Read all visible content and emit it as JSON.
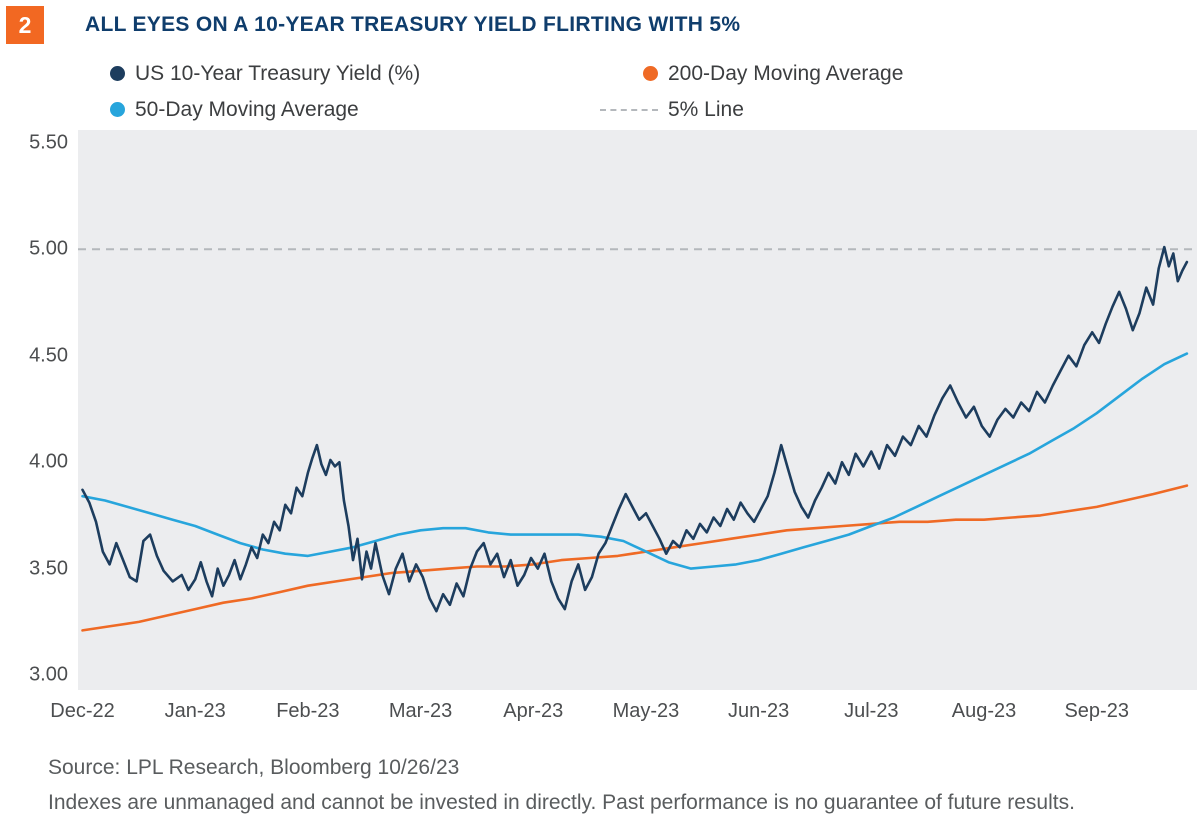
{
  "badge": {
    "number": "2"
  },
  "title": "ALL EYES ON A 10-YEAR TREASURY YIELD FLIRTING WITH 5%",
  "legend": [
    {
      "id": "us-10-year-treasury-yield",
      "label": "US 10-Year Treasury Yield (%)",
      "color": "#1d3d5e",
      "type": "dot"
    },
    {
      "id": "200-day-moving-average",
      "label": "200-Day Moving Average",
      "color": "#ef6a25",
      "type": "dot"
    },
    {
      "id": "50-day-moving-average",
      "label": "50-Day Moving Average",
      "color": "#27a5dc",
      "type": "dot"
    },
    {
      "id": "5-percent-line",
      "label": "5% Line",
      "color": "#b4b8bc",
      "type": "dash"
    }
  ],
  "footer": {
    "source": "Source: LPL Research, Bloomberg 10/26/23",
    "disclaimer": "Indexes are unmanaged and cannot be invested in directly. Past performance is no guarantee of future results."
  },
  "chart_data": {
    "type": "line",
    "title": "ALL EYES ON A 10-YEAR TREASURY YIELD FLIRTING WITH 5%",
    "xlabel": "",
    "ylabel": "",
    "x_unit": "months (0 = Dec-22 tick, data extends to 10/26/23)",
    "grid": false,
    "legend_position": "top",
    "xlim": [
      -0.04,
      9.89
    ],
    "ylim": [
      2.93,
      5.56
    ],
    "y_ticks": [
      {
        "value": 5.5,
        "label": "5.50"
      },
      {
        "value": 5.0,
        "label": "5.00"
      },
      {
        "value": 4.5,
        "label": "4.50"
      },
      {
        "value": 4.0,
        "label": "4.00"
      },
      {
        "value": 3.5,
        "label": "3.50"
      },
      {
        "value": 3.0,
        "label": "3.00"
      }
    ],
    "x_ticks": [
      {
        "value": 0,
        "label": "Dec-22"
      },
      {
        "value": 1,
        "label": "Jan-23"
      },
      {
        "value": 2,
        "label": "Feb-23"
      },
      {
        "value": 3,
        "label": "Mar-23"
      },
      {
        "value": 4,
        "label": "Apr-23"
      },
      {
        "value": 5,
        "label": "May-23"
      },
      {
        "value": 6,
        "label": "Jun-23"
      },
      {
        "value": 7,
        "label": "Jul-23"
      },
      {
        "value": 8,
        "label": "Aug-23"
      },
      {
        "value": 9,
        "label": "Sep-23"
      }
    ],
    "reference_line": {
      "label": "5% Line",
      "value": 5.0,
      "style": "dashed",
      "color": "#b4b8bc"
    },
    "series": [
      {
        "name": "200-Day Moving Average",
        "data_name": "line-200-day-moving-average",
        "color": "#ef6a25",
        "width": 2.6,
        "points": [
          [
            0,
            3.21
          ],
          [
            0.25,
            3.23
          ],
          [
            0.5,
            3.25
          ],
          [
            0.75,
            3.28
          ],
          [
            1,
            3.31
          ],
          [
            1.25,
            3.34
          ],
          [
            1.5,
            3.36
          ],
          [
            1.75,
            3.39
          ],
          [
            2,
            3.42
          ],
          [
            2.25,
            3.44
          ],
          [
            2.5,
            3.46
          ],
          [
            2.75,
            3.48
          ],
          [
            3,
            3.49
          ],
          [
            3.25,
            3.5
          ],
          [
            3.5,
            3.51
          ],
          [
            3.75,
            3.51
          ],
          [
            4,
            3.52
          ],
          [
            4.25,
            3.54
          ],
          [
            4.5,
            3.55
          ],
          [
            4.75,
            3.56
          ],
          [
            5,
            3.58
          ],
          [
            5.25,
            3.6
          ],
          [
            5.5,
            3.62
          ],
          [
            5.75,
            3.64
          ],
          [
            6,
            3.66
          ],
          [
            6.25,
            3.68
          ],
          [
            6.5,
            3.69
          ],
          [
            6.75,
            3.7
          ],
          [
            7,
            3.71
          ],
          [
            7.25,
            3.72
          ],
          [
            7.5,
            3.72
          ],
          [
            7.75,
            3.73
          ],
          [
            8,
            3.73
          ],
          [
            8.25,
            3.74
          ],
          [
            8.5,
            3.75
          ],
          [
            8.75,
            3.77
          ],
          [
            9,
            3.79
          ],
          [
            9.25,
            3.82
          ],
          [
            9.5,
            3.85
          ],
          [
            9.8,
            3.89
          ]
        ]
      },
      {
        "name": "50-Day Moving Average",
        "data_name": "line-50-day-moving-average",
        "color": "#27a5dc",
        "width": 2.6,
        "points": [
          [
            0,
            3.84
          ],
          [
            0.2,
            3.82
          ],
          [
            0.4,
            3.79
          ],
          [
            0.6,
            3.76
          ],
          [
            0.8,
            3.73
          ],
          [
            1,
            3.7
          ],
          [
            1.2,
            3.66
          ],
          [
            1.4,
            3.62
          ],
          [
            1.6,
            3.59
          ],
          [
            1.8,
            3.57
          ],
          [
            2,
            3.56
          ],
          [
            2.2,
            3.58
          ],
          [
            2.4,
            3.6
          ],
          [
            2.6,
            3.63
          ],
          [
            2.8,
            3.66
          ],
          [
            3,
            3.68
          ],
          [
            3.2,
            3.69
          ],
          [
            3.4,
            3.69
          ],
          [
            3.6,
            3.67
          ],
          [
            3.8,
            3.66
          ],
          [
            4,
            3.66
          ],
          [
            4.2,
            3.66
          ],
          [
            4.4,
            3.66
          ],
          [
            4.6,
            3.65
          ],
          [
            4.8,
            3.63
          ],
          [
            5,
            3.58
          ],
          [
            5.2,
            3.53
          ],
          [
            5.4,
            3.5
          ],
          [
            5.6,
            3.51
          ],
          [
            5.8,
            3.52
          ],
          [
            6,
            3.54
          ],
          [
            6.2,
            3.57
          ],
          [
            6.4,
            3.6
          ],
          [
            6.6,
            3.63
          ],
          [
            6.8,
            3.66
          ],
          [
            7,
            3.7
          ],
          [
            7.2,
            3.74
          ],
          [
            7.4,
            3.79
          ],
          [
            7.6,
            3.84
          ],
          [
            7.8,
            3.89
          ],
          [
            8,
            3.94
          ],
          [
            8.2,
            3.99
          ],
          [
            8.4,
            4.04
          ],
          [
            8.6,
            4.1
          ],
          [
            8.8,
            4.16
          ],
          [
            9,
            4.23
          ],
          [
            9.2,
            4.31
          ],
          [
            9.4,
            4.39
          ],
          [
            9.6,
            4.46
          ],
          [
            9.8,
            4.51
          ]
        ]
      },
      {
        "name": "US 10-Year Treasury Yield (%)",
        "data_name": "line-us-10-year-treasury-yield",
        "color": "#1d3d5e",
        "width": 2.6,
        "points": [
          [
            0,
            3.87
          ],
          [
            0.06,
            3.81
          ],
          [
            0.12,
            3.72
          ],
          [
            0.18,
            3.58
          ],
          [
            0.24,
            3.52
          ],
          [
            0.3,
            3.62
          ],
          [
            0.36,
            3.54
          ],
          [
            0.42,
            3.46
          ],
          [
            0.48,
            3.44
          ],
          [
            0.54,
            3.63
          ],
          [
            0.6,
            3.66
          ],
          [
            0.66,
            3.56
          ],
          [
            0.72,
            3.49
          ],
          [
            0.8,
            3.44
          ],
          [
            0.88,
            3.47
          ],
          [
            0.94,
            3.4
          ],
          [
            1,
            3.45
          ],
          [
            1.05,
            3.53
          ],
          [
            1.1,
            3.44
          ],
          [
            1.15,
            3.37
          ],
          [
            1.2,
            3.5
          ],
          [
            1.25,
            3.42
          ],
          [
            1.3,
            3.47
          ],
          [
            1.35,
            3.54
          ],
          [
            1.4,
            3.45
          ],
          [
            1.45,
            3.52
          ],
          [
            1.5,
            3.6
          ],
          [
            1.55,
            3.55
          ],
          [
            1.6,
            3.66
          ],
          [
            1.65,
            3.62
          ],
          [
            1.7,
            3.72
          ],
          [
            1.75,
            3.68
          ],
          [
            1.8,
            3.8
          ],
          [
            1.85,
            3.76
          ],
          [
            1.9,
            3.88
          ],
          [
            1.95,
            3.84
          ],
          [
            2,
            3.95
          ],
          [
            2.04,
            4.02
          ],
          [
            2.08,
            4.08
          ],
          [
            2.12,
            3.99
          ],
          [
            2.16,
            3.94
          ],
          [
            2.2,
            4.01
          ],
          [
            2.24,
            3.98
          ],
          [
            2.28,
            4
          ],
          [
            2.32,
            3.82
          ],
          [
            2.36,
            3.7
          ],
          [
            2.4,
            3.54
          ],
          [
            2.44,
            3.64
          ],
          [
            2.48,
            3.45
          ],
          [
            2.52,
            3.58
          ],
          [
            2.56,
            3.5
          ],
          [
            2.6,
            3.62
          ],
          [
            2.66,
            3.47
          ],
          [
            2.72,
            3.38
          ],
          [
            2.78,
            3.5
          ],
          [
            2.84,
            3.57
          ],
          [
            2.9,
            3.44
          ],
          [
            2.96,
            3.52
          ],
          [
            3.02,
            3.46
          ],
          [
            3.08,
            3.36
          ],
          [
            3.14,
            3.3
          ],
          [
            3.2,
            3.38
          ],
          [
            3.26,
            3.33
          ],
          [
            3.32,
            3.43
          ],
          [
            3.38,
            3.37
          ],
          [
            3.44,
            3.5
          ],
          [
            3.5,
            3.58
          ],
          [
            3.56,
            3.62
          ],
          [
            3.62,
            3.52
          ],
          [
            3.68,
            3.57
          ],
          [
            3.74,
            3.46
          ],
          [
            3.8,
            3.54
          ],
          [
            3.86,
            3.42
          ],
          [
            3.92,
            3.47
          ],
          [
            3.98,
            3.55
          ],
          [
            4.04,
            3.5
          ],
          [
            4.1,
            3.57
          ],
          [
            4.16,
            3.44
          ],
          [
            4.22,
            3.36
          ],
          [
            4.28,
            3.31
          ],
          [
            4.34,
            3.44
          ],
          [
            4.4,
            3.52
          ],
          [
            4.46,
            3.4
          ],
          [
            4.52,
            3.46
          ],
          [
            4.58,
            3.57
          ],
          [
            4.64,
            3.62
          ],
          [
            4.7,
            3.7
          ],
          [
            4.76,
            3.78
          ],
          [
            4.82,
            3.85
          ],
          [
            4.88,
            3.79
          ],
          [
            4.94,
            3.73
          ],
          [
            5,
            3.76
          ],
          [
            5.06,
            3.7
          ],
          [
            5.12,
            3.64
          ],
          [
            5.18,
            3.57
          ],
          [
            5.24,
            3.63
          ],
          [
            5.3,
            3.6
          ],
          [
            5.36,
            3.68
          ],
          [
            5.42,
            3.64
          ],
          [
            5.48,
            3.71
          ],
          [
            5.54,
            3.67
          ],
          [
            5.6,
            3.74
          ],
          [
            5.66,
            3.7
          ],
          [
            5.72,
            3.78
          ],
          [
            5.78,
            3.73
          ],
          [
            5.84,
            3.81
          ],
          [
            5.9,
            3.76
          ],
          [
            5.96,
            3.72
          ],
          [
            6.02,
            3.78
          ],
          [
            6.08,
            3.84
          ],
          [
            6.14,
            3.95
          ],
          [
            6.2,
            4.08
          ],
          [
            6.26,
            3.97
          ],
          [
            6.32,
            3.86
          ],
          [
            6.38,
            3.79
          ],
          [
            6.44,
            3.74
          ],
          [
            6.5,
            3.82
          ],
          [
            6.56,
            3.88
          ],
          [
            6.62,
            3.95
          ],
          [
            6.68,
            3.9
          ],
          [
            6.74,
            4
          ],
          [
            6.8,
            3.94
          ],
          [
            6.86,
            4.04
          ],
          [
            6.93,
            3.98
          ],
          [
            7,
            4.05
          ],
          [
            7.07,
            3.97
          ],
          [
            7.14,
            4.08
          ],
          [
            7.21,
            4.03
          ],
          [
            7.28,
            4.12
          ],
          [
            7.35,
            4.08
          ],
          [
            7.42,
            4.17
          ],
          [
            7.49,
            4.12
          ],
          [
            7.56,
            4.22
          ],
          [
            7.63,
            4.3
          ],
          [
            7.7,
            4.36
          ],
          [
            7.77,
            4.28
          ],
          [
            7.84,
            4.21
          ],
          [
            7.91,
            4.26
          ],
          [
            7.98,
            4.17
          ],
          [
            8.05,
            4.12
          ],
          [
            8.12,
            4.2
          ],
          [
            8.19,
            4.25
          ],
          [
            8.26,
            4.21
          ],
          [
            8.33,
            4.28
          ],
          [
            8.4,
            4.24
          ],
          [
            8.47,
            4.33
          ],
          [
            8.54,
            4.28
          ],
          [
            8.61,
            4.36
          ],
          [
            8.68,
            4.43
          ],
          [
            8.75,
            4.5
          ],
          [
            8.82,
            4.45
          ],
          [
            8.89,
            4.55
          ],
          [
            8.96,
            4.61
          ],
          [
            9.02,
            4.56
          ],
          [
            9.08,
            4.65
          ],
          [
            9.14,
            4.73
          ],
          [
            9.2,
            4.8
          ],
          [
            9.26,
            4.72
          ],
          [
            9.32,
            4.62
          ],
          [
            9.38,
            4.7
          ],
          [
            9.44,
            4.82
          ],
          [
            9.5,
            4.74
          ],
          [
            9.55,
            4.91
          ],
          [
            9.6,
            5.01
          ],
          [
            9.64,
            4.92
          ],
          [
            9.68,
            4.98
          ],
          [
            9.72,
            4.85
          ],
          [
            9.76,
            4.9
          ],
          [
            9.8,
            4.94
          ]
        ]
      }
    ]
  }
}
